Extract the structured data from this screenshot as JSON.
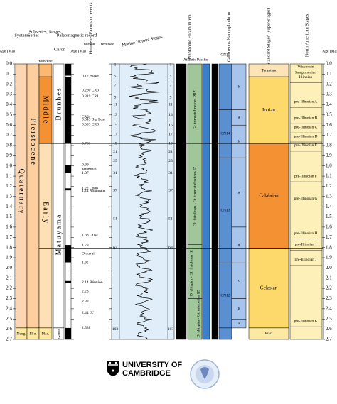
{
  "axis": {
    "title": "Age (Ma)",
    "ticks": [
      "0.0",
      "0.1",
      "0.2",
      "0.3",
      "0.4",
      "0.5",
      "0.6",
      "0.7",
      "0.8",
      "0.9",
      "1.0",
      "1.1",
      "1.2",
      "1.3",
      "1.4",
      "1.5",
      "1.6",
      "1.7",
      "1.8",
      "1.9",
      "2.0",
      "2.1",
      "2.2",
      "2.3",
      "2.4",
      "2.5",
      "2.6",
      "2.7"
    ]
  },
  "headers": {
    "system": "System",
    "series": "Series",
    "subseries": "Subseries, Stages",
    "chron": "Chron",
    "paleomag": "Paleomagnetic record",
    "normal": "normal",
    "reversed": "reversed",
    "events": "Holocene, Excursion events",
    "mis": "Marine Isotope Stages",
    "forams": "Planktonic Foraminifera",
    "forams_sub": "Atlantic Pacific",
    "nanno": "Calcareous Nannoplankton",
    "stages": "'Standard Stages' (super-stages)",
    "na": "North American Stages"
  },
  "system": [
    "Quaternary",
    "Neog."
  ],
  "series": [
    "Holocene",
    "Pleistocene",
    "Plio."
  ],
  "subseries": [
    "Middle",
    "Early",
    "Plac."
  ],
  "chron": [
    "Brunhes",
    "Matuyama",
    "Gauss"
  ],
  "events": [
    "0.12 Blake",
    "0.260 CR0",
    "0.319 CR1",
    "CR2/",
    "0.543 Big Lost",
    "0.593 CR3",
    "0.781",
    "0.99",
    "Jaramillo",
    "1.07",
    "1.22 Cobb",
    "1.24 Mountain",
    "1.68 Gilsa",
    "1.78",
    "Olduvai",
    "1.95",
    "2.14 Réunion",
    "2.23",
    "2.33",
    "2.44 'X'",
    "2.588"
  ],
  "mis": [
    "1",
    "5",
    "7",
    "9",
    "11",
    "13",
    "15",
    "17",
    "19",
    "21",
    "25",
    "31",
    "37",
    "51",
    "63",
    "103"
  ],
  "forams": [
    "Gr. truncatulinoides PRZ",
    "Gl. fistulosus - Gt. truncatulinoides IZ",
    "D. altispira - Gl. fistulosus IZ",
    "D. altispira - Gt. miocenica IZ"
  ],
  "nanno": {
    "zones": [
      "CN15",
      "CN14",
      "CN13",
      "CN12"
    ],
    "subzones": [
      "b",
      "a",
      "b",
      "a",
      "d",
      "c",
      "b",
      "a"
    ]
  },
  "stages": [
    "Tarantian",
    "Ionian",
    "Calabrian",
    "Gelasian",
    "Piac."
  ],
  "na": [
    "Wisconsin",
    "Sangamonian",
    "Illinoian",
    "pre-Illinoian A",
    "pre-Illinoian B",
    "pre-Illinoian C",
    "pre-Illinoian D",
    "pre-Illinoian E",
    "pre-Illinoian F",
    "pre-Illinoian G",
    "pre-Illinoian H",
    "pre-Illinoian I",
    "pre-Illinoian J",
    "pre-Illinoian K"
  ],
  "footer": {
    "logo_line1": "UNIVERSITY OF",
    "logo_line2": "CAMBRIDGE"
  }
}
